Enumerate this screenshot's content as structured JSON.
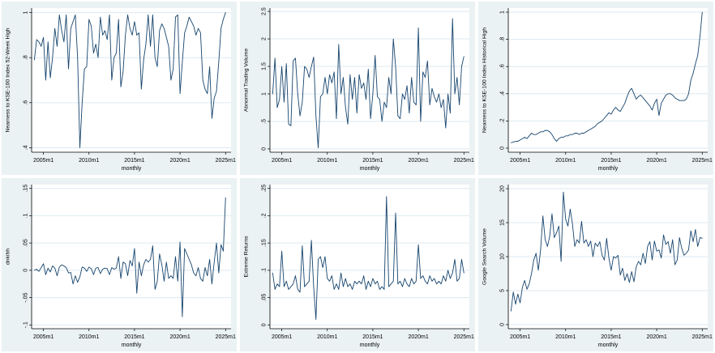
{
  "figure": {
    "description": "Grid of six monthly time-series plots for KSE-100 index sentiment measures",
    "columns": 3,
    "rows": 2
  },
  "style": {
    "page_bg": "#ffffff",
    "panel_bg": "#eaf2f3",
    "plot_bg": "#ffffff",
    "grid_color": "#dde9f0",
    "line_color": "#17456e",
    "axis_color": "#000000",
    "text_color": "#000000"
  },
  "chart_data": [
    {
      "id": "nearness-52-week-high",
      "type": "line",
      "title": "",
      "ylabel": "Nearness to KSE-100 Index 52-Week High",
      "xlabel": "monthly",
      "legend": "none",
      "grid": "horizontal",
      "ylim": [
        0.38,
        1.02
      ],
      "xlim": [
        2003.7,
        2025.6
      ],
      "yticks": [
        {
          "v": 0.4,
          "label": ".4"
        },
        {
          "v": 0.6,
          "label": ".6"
        },
        {
          "v": 0.8,
          "label": ".8"
        },
        {
          "v": 1.0,
          "label": "1"
        }
      ],
      "xticks": [
        {
          "v": 2005,
          "label": "2005m1"
        },
        {
          "v": 2010,
          "label": "2010m1"
        },
        {
          "v": 2015,
          "label": "2015m1"
        },
        {
          "v": 2020,
          "label": "2020m1"
        },
        {
          "v": 2025,
          "label": "2025m1"
        }
      ],
      "x_start": 2004.0,
      "x_step": 0.25,
      "values": [
        0.79,
        0.88,
        0.87,
        0.85,
        0.89,
        0.7,
        0.87,
        0.71,
        0.8,
        0.93,
        0.85,
        0.99,
        0.92,
        0.87,
        0.99,
        0.75,
        0.93,
        0.96,
        0.99,
        0.8,
        0.4,
        0.6,
        0.75,
        0.76,
        0.97,
        0.94,
        0.82,
        0.86,
        0.8,
        0.98,
        0.9,
        0.92,
        0.88,
        0.99,
        0.7,
        0.8,
        0.82,
        0.97,
        0.67,
        0.74,
        0.9,
        0.99,
        0.93,
        0.9,
        0.96,
        0.9,
        0.91,
        0.66,
        0.79,
        0.86,
        0.99,
        0.85,
        0.99,
        0.8,
        0.76,
        0.92,
        0.95,
        0.93,
        0.89,
        0.85,
        0.7,
        0.75,
        0.98,
        0.99,
        0.64,
        0.78,
        0.91,
        0.94,
        0.98,
        0.96,
        0.94,
        0.9,
        0.93,
        0.91,
        0.7,
        0.66,
        0.64,
        0.76,
        0.53,
        0.62,
        0.65,
        0.78,
        0.93,
        0.97,
        1.0
      ]
    },
    {
      "id": "abnormal-trading-volume",
      "type": "line",
      "title": "",
      "ylabel": "Abnormal Trading Volume",
      "xlabel": "monthly",
      "legend": "none",
      "grid": "horizontal",
      "ylim": [
        -0.06,
        2.56
      ],
      "xlim": [
        2003.7,
        2025.6
      ],
      "yticks": [
        {
          "v": 0,
          "label": "0"
        },
        {
          "v": 0.5,
          "label": ".5"
        },
        {
          "v": 1.0,
          "label": "1"
        },
        {
          "v": 1.5,
          "label": "1.5"
        },
        {
          "v": 2.0,
          "label": "2"
        },
        {
          "v": 2.5,
          "label": "2.5"
        }
      ],
      "xticks": [
        {
          "v": 2005,
          "label": "2005m1"
        },
        {
          "v": 2010,
          "label": "2010m1"
        },
        {
          "v": 2015,
          "label": "2015m1"
        },
        {
          "v": 2020,
          "label": "2020m1"
        },
        {
          "v": 2025,
          "label": "2025m1"
        }
      ],
      "x_start": 2004.0,
      "x_step": 0.25,
      "values": [
        1.0,
        1.65,
        0.75,
        0.9,
        1.5,
        0.85,
        1.55,
        0.45,
        0.42,
        1.6,
        1.65,
        1.0,
        0.6,
        0.85,
        1.5,
        1.45,
        1.3,
        1.5,
        1.67,
        0.6,
        0.02,
        0.95,
        1.0,
        1.3,
        1.0,
        1.35,
        1.2,
        1.4,
        0.55,
        1.9,
        1.0,
        1.3,
        0.75,
        0.45,
        1.35,
        0.9,
        1.3,
        0.65,
        1.35,
        1.1,
        1.2,
        0.9,
        1.45,
        0.55,
        1.0,
        1.7,
        0.95,
        0.9,
        0.5,
        0.85,
        0.75,
        1.3,
        1.0,
        2.0,
        1.5,
        0.6,
        0.55,
        1.0,
        0.9,
        1.15,
        0.65,
        1.3,
        0.85,
        0.8,
        2.2,
        0.5,
        1.4,
        1.3,
        1.6,
        0.8,
        1.1,
        0.95,
        0.85,
        1.0,
        0.75,
        0.9,
        0.38,
        1.0,
        0.65,
        2.37,
        1.0,
        1.3,
        0.8,
        1.5,
        1.68
      ]
    },
    {
      "id": "nearness-historical-high",
      "type": "line",
      "title": "",
      "ylabel": "Nearness to KSE-100 Index Historical High",
      "xlabel": "monthly",
      "legend": "none",
      "grid": "horizontal",
      "ylim": [
        -0.03,
        1.03
      ],
      "xlim": [
        2003.7,
        2025.6
      ],
      "yticks": [
        {
          "v": 0,
          "label": "0"
        },
        {
          "v": 0.2,
          "label": ".2"
        },
        {
          "v": 0.4,
          "label": ".4"
        },
        {
          "v": 0.6,
          "label": ".6"
        },
        {
          "v": 0.8,
          "label": ".8"
        },
        {
          "v": 1.0,
          "label": "1"
        }
      ],
      "xticks": [
        {
          "v": 2005,
          "label": "2005m1"
        },
        {
          "v": 2010,
          "label": "2010m1"
        },
        {
          "v": 2015,
          "label": "2015m1"
        },
        {
          "v": 2020,
          "label": "2020m1"
        },
        {
          "v": 2025,
          "label": "2025m1"
        }
      ],
      "x_start": 2004.0,
      "x_step": 0.25,
      "values": [
        0.04,
        0.045,
        0.05,
        0.05,
        0.06,
        0.07,
        0.08,
        0.07,
        0.09,
        0.11,
        0.1,
        0.1,
        0.11,
        0.12,
        0.12,
        0.13,
        0.13,
        0.12,
        0.1,
        0.07,
        0.05,
        0.07,
        0.08,
        0.08,
        0.09,
        0.09,
        0.1,
        0.1,
        0.11,
        0.11,
        0.1,
        0.11,
        0.11,
        0.12,
        0.13,
        0.14,
        0.15,
        0.16,
        0.18,
        0.19,
        0.2,
        0.22,
        0.24,
        0.26,
        0.25,
        0.28,
        0.3,
        0.28,
        0.27,
        0.3,
        0.33,
        0.38,
        0.42,
        0.44,
        0.4,
        0.36,
        0.38,
        0.39,
        0.37,
        0.35,
        0.33,
        0.31,
        0.28,
        0.33,
        0.36,
        0.24,
        0.33,
        0.36,
        0.39,
        0.4,
        0.4,
        0.39,
        0.37,
        0.36,
        0.35,
        0.35,
        0.35,
        0.36,
        0.4,
        0.5,
        0.55,
        0.62,
        0.68,
        0.82,
        1.0
      ]
    },
    {
      "id": "dnkihh",
      "type": "line",
      "title": "",
      "ylabel": "dnkihh",
      "xlabel": "monthly",
      "legend": "none",
      "grid": "horizontal",
      "ylim": [
        -0.107,
        0.157
      ],
      "xlim": [
        2003.7,
        2025.6
      ],
      "yticks": [
        {
          "v": -0.1,
          "label": "-.1"
        },
        {
          "v": -0.05,
          "label": "-.05"
        },
        {
          "v": 0,
          "label": "0"
        },
        {
          "v": 0.05,
          "label": ".05"
        },
        {
          "v": 0.1,
          "label": ".1"
        },
        {
          "v": 0.15,
          "label": ".15"
        }
      ],
      "xticks": [
        {
          "v": 2005,
          "label": "2005m1"
        },
        {
          "v": 2010,
          "label": "2010m1"
        },
        {
          "v": 2015,
          "label": "2015m1"
        },
        {
          "v": 2020,
          "label": "2020m1"
        },
        {
          "v": 2025,
          "label": "2025m1"
        }
      ],
      "x_start": 2004.0,
      "x_step": 0.25,
      "values": [
        0,
        0.002,
        -0.002,
        0.005,
        0.012,
        -0.008,
        0.004,
        -0.003,
        0.008,
        0.004,
        -0.01,
        0.006,
        0.01,
        0.008,
        0.005,
        -0.005,
        -0.004,
        -0.025,
        -0.01,
        -0.022,
        -0.012,
        0.006,
        0.004,
        -0.002,
        0.006,
        0.003,
        -0.008,
        0.004,
        0.005,
        -0.006,
        0.002,
        0.004,
        0.003,
        -0.008,
        0.005,
        0.002,
        0.004,
        0.025,
        -0.015,
        0.015,
        0.012,
        -0.01,
        0.018,
        0.008,
        0.04,
        -0.042,
        0.015,
        -0.01,
        0.01,
        0.02,
        0.015,
        0.02,
        0.045,
        -0.035,
        -0.02,
        0.03,
        0.01,
        -0.02,
        0.015,
        -0.015,
        -0.01,
        -0.015,
        0.025,
        -0.02,
        0.052,
        -0.085,
        0.04,
        0.03,
        0.02,
        0.01,
        -0.005,
        -0.01,
        0.005,
        -0.015,
        -0.02,
        0.005,
        -0.01,
        0.02,
        -0.025,
        0.015,
        0.05,
        -0.005,
        0.047,
        0.035,
        0.133
      ]
    },
    {
      "id": "extreme-returns",
      "type": "line",
      "title": "",
      "ylabel": "Extreme Returns",
      "xlabel": "monthly",
      "legend": "none",
      "grid": "horizontal",
      "ylim": [
        -0.007,
        0.257
      ],
      "xlim": [
        2003.7,
        2025.6
      ],
      "yticks": [
        {
          "v": 0,
          "label": "0"
        },
        {
          "v": 0.05,
          "label": ".05"
        },
        {
          "v": 0.1,
          "label": ".1"
        },
        {
          "v": 0.15,
          "label": ".15"
        },
        {
          "v": 0.2,
          "label": ".2"
        },
        {
          "v": 0.25,
          "label": ".25"
        }
      ],
      "xticks": [
        {
          "v": 2005,
          "label": "2005m1"
        },
        {
          "v": 2010,
          "label": "2010m1"
        },
        {
          "v": 2015,
          "label": "2015m1"
        },
        {
          "v": 2020,
          "label": "2020m1"
        },
        {
          "v": 2025,
          "label": "2025m1"
        }
      ],
      "x_start": 2004.0,
      "x_step": 0.25,
      "values": [
        0.095,
        0.065,
        0.075,
        0.07,
        0.135,
        0.07,
        0.08,
        0.065,
        0.07,
        0.075,
        0.09,
        0.065,
        0.06,
        0.145,
        0.07,
        0.075,
        0.08,
        0.155,
        0.07,
        0.01,
        0.12,
        0.125,
        0.105,
        0.125,
        0.085,
        0.08,
        0.09,
        0.065,
        0.075,
        0.065,
        0.095,
        0.07,
        0.085,
        0.07,
        0.075,
        0.065,
        0.08,
        0.075,
        0.08,
        0.075,
        0.09,
        0.065,
        0.08,
        0.07,
        0.085,
        0.075,
        0.08,
        0.065,
        0.07,
        0.065,
        0.235,
        0.07,
        0.075,
        0.08,
        0.205,
        0.075,
        0.08,
        0.07,
        0.085,
        0.075,
        0.07,
        0.085,
        0.075,
        0.08,
        0.147,
        0.085,
        0.09,
        0.08,
        0.075,
        0.09,
        0.08,
        0.085,
        0.075,
        0.08,
        0.075,
        0.09,
        0.08,
        0.1,
        0.085,
        0.095,
        0.12,
        0.08,
        0.085,
        0.12,
        0.095
      ]
    },
    {
      "id": "google-search-volume",
      "type": "line",
      "title": "",
      "ylabel": "Google Search Volume",
      "xlabel": "monthly",
      "legend": "none",
      "grid": "horizontal",
      "ylim": [
        -0.6,
        20.6
      ],
      "xlim": [
        2003.7,
        2025.6
      ],
      "yticks": [
        {
          "v": 0,
          "label": "0"
        },
        {
          "v": 5,
          "label": "5"
        },
        {
          "v": 10,
          "label": "10"
        },
        {
          "v": 15,
          "label": "15"
        },
        {
          "v": 20,
          "label": "20"
        }
      ],
      "xticks": [
        {
          "v": 2005,
          "label": "2005m1"
        },
        {
          "v": 2010,
          "label": "2010m1"
        },
        {
          "v": 2015,
          "label": "2015m1"
        },
        {
          "v": 2020,
          "label": "2020m1"
        },
        {
          "v": 2025,
          "label": "2025m1"
        }
      ],
      "x_start": 2004.0,
      "x_step": 0.25,
      "values": [
        2.0,
        4.8,
        3.0,
        4.5,
        3.2,
        5.5,
        6.5,
        5.2,
        6.0,
        7.5,
        9.5,
        10.5,
        8.0,
        11,
        16,
        12.5,
        11.5,
        13,
        16.3,
        12.8,
        13.5,
        14.5,
        9.3,
        19.5,
        15.5,
        14.5,
        17,
        14.8,
        11.5,
        12.5,
        12,
        15.2,
        12,
        12.5,
        11.5,
        12.3,
        10,
        12,
        11.5,
        12.2,
        10.2,
        9.5,
        12.7,
        9.8,
        8,
        10,
        9.8,
        10.2,
        7.3,
        8.3,
        6.5,
        7.5,
        6.2,
        7.8,
        6.3,
        8.5,
        9.3,
        8.8,
        10.5,
        9.0,
        11.5,
        12.2,
        9.5,
        12.3,
        10.8,
        11,
        9.8,
        13.2,
        11.8,
        12.2,
        10.5,
        12.5,
        8.8,
        9.5,
        12.8,
        11.2,
        10.2,
        10.5,
        11,
        13.8,
        12.2,
        14,
        11.5,
        12.8,
        12.7
      ]
    }
  ]
}
